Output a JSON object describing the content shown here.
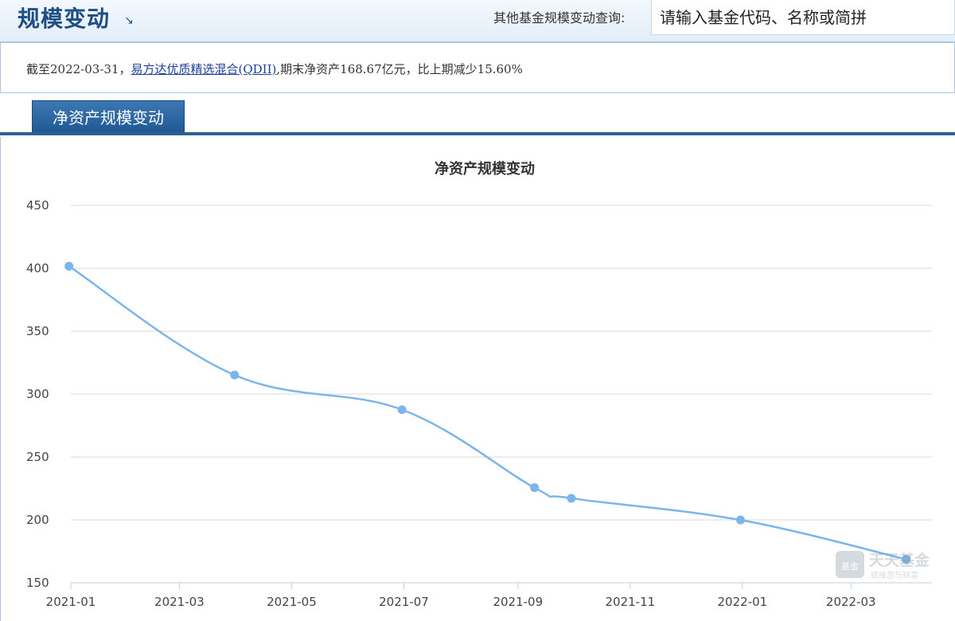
{
  "header": {
    "title": "规模变动",
    "title_arrow": "↘",
    "search_label": "其他基金规模变动查询:",
    "search_placeholder": "请输入基金代码、名称或简拼"
  },
  "summary": {
    "prefix": "截至2022-03-31，",
    "fund_name": "易方达优质精选混合(QDII)",
    "suffix": ",期末净资产168.67亿元，比上期减少15.60%"
  },
  "tab": {
    "label": "净资产规模变动"
  },
  "watermark": {
    "logo_text": "基金",
    "name": "天天基金",
    "slogan": "链接您与财富"
  },
  "colors": {
    "accent": "#1f4e85",
    "line": "#7cb5ec",
    "grid": "#d8d8d8"
  },
  "chart_data": {
    "type": "line",
    "title": "净资产规模变动",
    "xlabel": "",
    "ylabel": "",
    "ylim": [
      150,
      450
    ],
    "xlim": [
      "2021-01-01",
      "2022-04-14"
    ],
    "yticks": [
      "450",
      "400",
      "350",
      "300",
      "250",
      "200",
      "150"
    ],
    "xticks": [
      "2021-01",
      "2021-03",
      "2021-05",
      "2021-07",
      "2021-09",
      "2021-11",
      "2022-01",
      "2022-03"
    ],
    "grid": true,
    "series": [
      {
        "x": [
          "2020-12-31",
          "2021-03-31",
          "2021-06-30",
          "2021-09-10",
          "2021-09-30",
          "2021-12-31",
          "2022-03-31"
        ],
        "values": [
          401.7,
          315.2,
          287.6,
          225.6,
          217.2,
          199.9,
          168.67
        ]
      }
    ]
  }
}
